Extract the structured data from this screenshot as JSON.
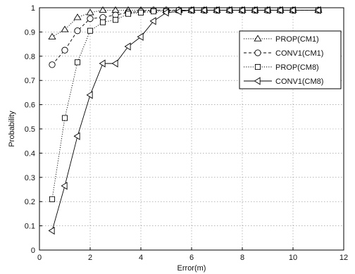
{
  "chart_data": {
    "type": "line",
    "title": "",
    "xlabel": "Error(m)",
    "ylabel": "Probability",
    "xlim": [
      0,
      12
    ],
    "ylim": [
      0,
      1
    ],
    "xticks": [
      0,
      2,
      4,
      6,
      8,
      10,
      12
    ],
    "yticks": [
      0,
      0.1,
      0.2,
      0.3,
      0.4,
      0.5,
      0.6,
      0.7,
      0.8,
      0.9,
      1
    ],
    "grid": true,
    "legend_position": "top-right",
    "x": [
      0.5,
      1,
      1.5,
      2,
      2.5,
      3,
      3.5,
      4,
      4.5,
      5,
      5.5,
      6,
      6.5,
      7,
      7.5,
      8,
      8.5,
      9,
      9.5,
      10,
      11
    ],
    "series": [
      {
        "name": "PROP(CM1)",
        "marker": "triangle-up",
        "dash": "1.2 2",
        "values": [
          0.88,
          0.91,
          0.96,
          0.98,
          0.99,
          0.99,
          0.99,
          0.99,
          0.99,
          0.99,
          0.99,
          0.99,
          0.99,
          0.99,
          0.99,
          0.99,
          0.99,
          0.99,
          0.99,
          0.99,
          0.99
        ]
      },
      {
        "name": "CONV1(CM1)",
        "marker": "circle",
        "dash": "4 3",
        "values": [
          0.765,
          0.825,
          0.905,
          0.955,
          0.96,
          0.97,
          0.98,
          0.985,
          0.99,
          0.99,
          0.99,
          0.99,
          0.99,
          0.99,
          0.99,
          0.99,
          0.99,
          0.99,
          0.99,
          0.99,
          0.99
        ]
      },
      {
        "name": "PROP(CM8)",
        "marker": "square",
        "dash": "1.2 2",
        "values": [
          0.21,
          0.545,
          0.775,
          0.905,
          0.94,
          0.95,
          0.975,
          0.98,
          0.985,
          0.985,
          0.99,
          0.99,
          0.99,
          0.99,
          0.99,
          0.99,
          0.99,
          0.99,
          0.99,
          0.99,
          0.99
        ]
      },
      {
        "name": "CONV1(CM8)",
        "marker": "triangle-left",
        "dash": "",
        "values": [
          0.08,
          0.265,
          0.47,
          0.64,
          0.77,
          0.77,
          0.84,
          0.88,
          0.945,
          0.98,
          0.985,
          0.99,
          0.99,
          0.99,
          0.99,
          0.99,
          0.99,
          0.99,
          0.99,
          0.99,
          0.99
        ]
      }
    ]
  }
}
